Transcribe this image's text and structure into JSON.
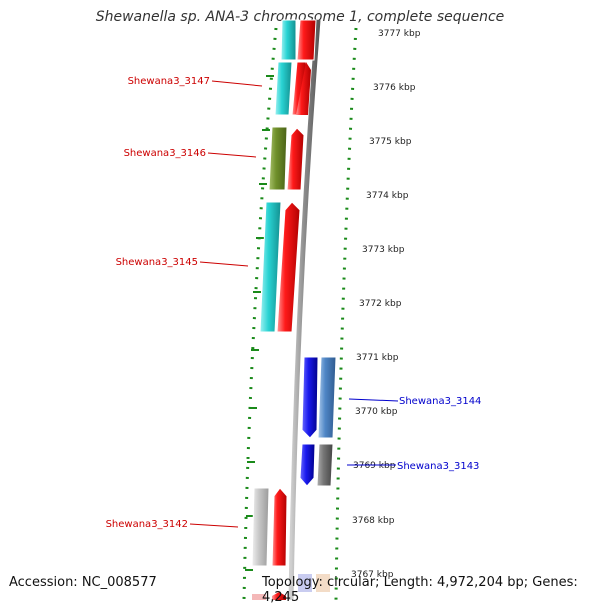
{
  "title": "Shewanella sp. ANA-3 chromosome 1, complete sequence",
  "footer": {
    "accession": "Accession: NC_008577",
    "topology": "Topology: circular; Length: 4,972,204 bp; Genes: 4,245"
  },
  "colors": {
    "forward_strand_label": "#cc0000",
    "reverse_strand_label": "#0000cc",
    "tick_green": "#1a8a1a",
    "backbone": "#8c8c8c",
    "cds_red": "#ff1a1a",
    "cds_blue": "#1a1aee",
    "cyan": "#29d3d3",
    "olive": "#6f8f2a",
    "steelblue": "#4f86c6",
    "gray": "#777777",
    "lightgray": "#bdbdbd"
  },
  "scale_labels": [
    "3777 kbp",
    "3776 kbp",
    "3775 kbp",
    "3774 kbp",
    "3773 kbp",
    "3772 kbp",
    "3771 kbp",
    "3770 kbp",
    "3769 kbp",
    "3768 kbp",
    "3767 kbp"
  ],
  "gene_labels": [
    {
      "name": "Shewana3_3147",
      "strand": "forward"
    },
    {
      "name": "Shewana3_3146",
      "strand": "forward"
    },
    {
      "name": "Shewana3_3145",
      "strand": "forward"
    },
    {
      "name": "Shewana3_3144",
      "strand": "reverse"
    },
    {
      "name": "Shewana3_3143",
      "strand": "reverse"
    },
    {
      "name": "Shewana3_3142",
      "strand": "forward"
    }
  ]
}
